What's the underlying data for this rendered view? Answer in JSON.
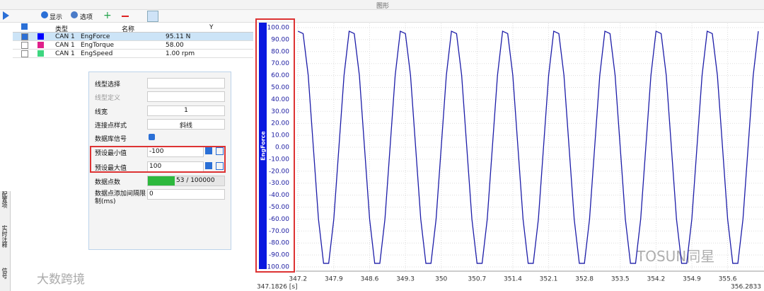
{
  "window_title": "图形",
  "toolbar": {
    "display": "显示",
    "options": "选项"
  },
  "signal_table": {
    "headers": [
      "类型",
      "名称",
      "Y"
    ],
    "rows": [
      [
        "CAN 1",
        "EngForce",
        "95.11 N"
      ],
      [
        "CAN 1",
        "EngTorque",
        "58.00"
      ],
      [
        "CAN 1",
        "EngSpeed",
        "1.00 rpm"
      ]
    ]
  },
  "properties": {
    "rows": [
      {
        "label": "线型选择"
      },
      {
        "label": "线型定义"
      },
      {
        "label": "线宽",
        "value": "1"
      },
      {
        "label": "连接点样式",
        "value": "斜线"
      },
      {
        "label": "数据库信号"
      },
      {
        "label": "预设最小值",
        "value": "-100"
      },
      {
        "label": "预设最大值",
        "value": "100"
      },
      {
        "label": "数据点数",
        "value": "53 / 100000"
      },
      {
        "label": "数据点添加间隔限制(ms)",
        "value": "0"
      }
    ]
  },
  "side_tabs": [
    "配置项",
    "实时注释",
    "信号"
  ],
  "watermarks": [
    "大数跨境",
    "TOSUN同星"
  ],
  "chart_data": {
    "type": "line",
    "ylabel": "EngForce",
    "color": "#1c1ca8",
    "x": [
      347.2,
      347.3,
      347.4,
      347.5,
      347.6,
      347.7,
      347.8,
      347.9,
      348.0,
      348.1,
      348.2,
      348.3,
      348.4,
      348.5,
      348.6,
      348.7,
      348.8,
      348.9,
      349.0,
      349.1,
      349.2,
      349.3,
      349.4,
      349.5,
      349.6,
      349.7,
      349.8,
      349.9,
      350.0,
      350.1,
      350.2,
      350.3,
      350.4,
      350.5,
      350.6,
      350.7,
      350.8,
      350.9,
      351.0,
      351.1,
      351.2,
      351.3,
      351.4,
      351.5,
      351.6,
      351.7,
      351.8,
      351.9,
      352.0,
      352.1,
      352.2,
      352.3,
      352.4,
      352.5,
      352.6,
      352.7,
      352.8,
      352.9,
      353.0,
      353.1,
      353.2,
      353.3,
      353.4,
      353.5,
      353.6,
      353.7,
      353.8,
      353.9,
      354.0,
      354.1,
      354.2,
      354.3,
      354.4,
      354.5,
      354.6,
      354.7,
      354.8,
      354.9,
      355.0,
      355.1,
      355.2,
      355.3,
      355.4,
      355.5,
      355.6,
      355.7,
      355.8,
      355.9,
      356.0,
      356.1,
      356.2
    ],
    "values": [
      97,
      95,
      60,
      0,
      -60,
      -97,
      -97,
      -60,
      0,
      60,
      97,
      95,
      60,
      0,
      -60,
      -97,
      -97,
      -60,
      0,
      60,
      97,
      95,
      60,
      0,
      -60,
      -97,
      -97,
      -60,
      0,
      60,
      97,
      95,
      60,
      0,
      -60,
      -97,
      -97,
      -60,
      0,
      60,
      97,
      95,
      60,
      0,
      -60,
      -97,
      -97,
      -60,
      0,
      60,
      97,
      95,
      60,
      0,
      -60,
      -97,
      -97,
      -60,
      0,
      60,
      97,
      95,
      60,
      0,
      -60,
      -97,
      -97,
      -60,
      0,
      60,
      97,
      95,
      60,
      0,
      -60,
      -97,
      -97,
      -60,
      0,
      60,
      97,
      95,
      60,
      0,
      -60,
      -97,
      -97,
      -60,
      0,
      60,
      97
    ],
    "xlim": [
      347.1826,
      356.2833
    ],
    "x_range_labels": [
      "347.1826 [s]",
      "356.2833"
    ],
    "xticks": [
      347.2,
      347.9,
      348.6,
      349.3,
      350,
      350.7,
      351.4,
      352.1,
      352.8,
      353.5,
      354.2,
      354.9,
      355.6
    ],
    "ylim": [
      -100,
      100
    ],
    "yticks": [
      {
        "value": 100,
        "label": "100.00"
      },
      {
        "value": 90,
        "label": "90.00"
      },
      {
        "value": 80,
        "label": "80.00"
      },
      {
        "value": 70,
        "label": "70.00"
      },
      {
        "value": 60,
        "label": "60.00"
      },
      {
        "value": 50,
        "label": "50.00"
      },
      {
        "value": 40,
        "label": "40.00"
      },
      {
        "value": 30,
        "label": "30.00"
      },
      {
        "value": 20,
        "label": "20.00"
      },
      {
        "value": 10,
        "label": "10.00"
      },
      {
        "value": 0,
        "label": "0.00"
      },
      {
        "value": -10,
        "label": "-10.00"
      },
      {
        "value": -20,
        "label": "-20.00"
      },
      {
        "value": -30,
        "label": "-30.00"
      },
      {
        "value": -40,
        "label": "-40.00"
      },
      {
        "value": -50,
        "label": "-50.00"
      },
      {
        "value": -60,
        "label": "-60.00"
      },
      {
        "value": -70,
        "label": "-70.00"
      },
      {
        "value": -80,
        "label": "-80.00"
      },
      {
        "value": -90,
        "label": "-90.00"
      },
      {
        "value": -100,
        "label": "-100.00"
      }
    ],
    "grid": true
  }
}
